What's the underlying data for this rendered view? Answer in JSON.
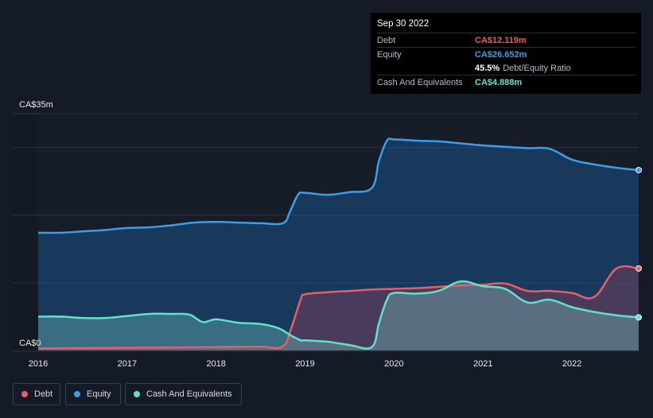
{
  "tooltip": {
    "date": "Sep 30 2022",
    "rows": [
      {
        "label": "Debt",
        "value": "CA$12.119m",
        "color": "#e85d6a"
      },
      {
        "label": "Equity",
        "value": "CA$26.652m",
        "color": "#3b9ee8"
      },
      {
        "label": "",
        "value": "45.5%",
        "suffix": "Debt/Equity Ratio",
        "color": "#ffffff"
      },
      {
        "label": "Cash And Equivalents",
        "value": "CA$4.888m",
        "color": "#5fe3c8"
      }
    ]
  },
  "legend": [
    {
      "label": "Debt",
      "color": "#e85d6a"
    },
    {
      "label": "Equity",
      "color": "#3b9ee8"
    },
    {
      "label": "Cash And Equivalents",
      "color": "#5fe3c8"
    }
  ],
  "chart_data": {
    "type": "area",
    "title": "",
    "xlabel": "",
    "ylabel": "",
    "y_top_label": "CA$35m",
    "y_bottom_label": "CA$0",
    "ylim": [
      0,
      35
    ],
    "xlim": [
      2016,
      2022.75
    ],
    "x_ticks": [
      {
        "x": 2016,
        "label": "2016"
      },
      {
        "x": 2017,
        "label": "2017"
      },
      {
        "x": 2018,
        "label": "2018"
      },
      {
        "x": 2019,
        "label": "2019"
      },
      {
        "x": 2020,
        "label": "2020"
      },
      {
        "x": 2021,
        "label": "2021"
      },
      {
        "x": 2022,
        "label": "2022"
      }
    ],
    "series": [
      {
        "name": "Equity",
        "color": "#3b9ee8",
        "x": [
          2016,
          2016.25,
          2016.5,
          2016.75,
          2017,
          2017.25,
          2017.5,
          2017.75,
          2018,
          2018.25,
          2018.5,
          2018.75,
          2018.83,
          2018.92,
          2019,
          2019.25,
          2019.5,
          2019.75,
          2019.83,
          2019.92,
          2020,
          2020.25,
          2020.5,
          2020.75,
          2021,
          2021.25,
          2021.5,
          2021.75,
          2022,
          2022.25,
          2022.5,
          2022.75
        ],
        "values": [
          17.4,
          17.4,
          17.6,
          17.8,
          18.1,
          18.2,
          18.5,
          18.9,
          19.0,
          18.9,
          18.8,
          18.8,
          20.5,
          23.0,
          23.3,
          23.0,
          23.4,
          24.0,
          28.0,
          31.0,
          31.2,
          31.0,
          30.9,
          30.6,
          30.3,
          30.1,
          29.9,
          29.8,
          28.2,
          27.5,
          27.0,
          26.652
        ]
      },
      {
        "name": "Debt",
        "color": "#e85d6a",
        "x": [
          2016,
          2016.5,
          2017,
          2017.5,
          2018,
          2018.5,
          2018.75,
          2018.85,
          2018.95,
          2019,
          2019.25,
          2019.5,
          2019.75,
          2020,
          2020.25,
          2020.5,
          2020.75,
          2021,
          2021.25,
          2021.5,
          2021.75,
          2022,
          2022.25,
          2022.5,
          2022.75
        ],
        "values": [
          0.3,
          0.35,
          0.4,
          0.45,
          0.5,
          0.55,
          0.6,
          3.5,
          7.5,
          8.3,
          8.6,
          8.8,
          9.0,
          9.1,
          9.2,
          9.4,
          9.6,
          9.7,
          9.9,
          8.8,
          8.8,
          8.5,
          7.9,
          12.119,
          12.119
        ]
      },
      {
        "name": "Cash And Equivalents",
        "color": "#5fe3c8",
        "x": [
          2016,
          2016.25,
          2016.5,
          2016.75,
          2017,
          2017.25,
          2017.5,
          2017.7,
          2017.85,
          2018,
          2018.25,
          2018.5,
          2018.7,
          2018.83,
          2018.95,
          2019,
          2019.25,
          2019.5,
          2019.75,
          2019.83,
          2019.92,
          2020,
          2020.25,
          2020.5,
          2020.75,
          2021,
          2021.25,
          2021.5,
          2021.75,
          2022,
          2022.25,
          2022.5,
          2022.75
        ],
        "values": [
          5.0,
          5.0,
          4.8,
          4.8,
          5.1,
          5.4,
          5.4,
          5.3,
          4.2,
          4.6,
          4.1,
          3.9,
          3.3,
          2.3,
          1.5,
          1.5,
          1.3,
          0.8,
          0.5,
          4.0,
          7.5,
          8.5,
          8.4,
          8.8,
          10.2,
          9.5,
          9.1,
          7.1,
          7.5,
          6.4,
          5.7,
          5.2,
          4.888
        ]
      }
    ]
  }
}
